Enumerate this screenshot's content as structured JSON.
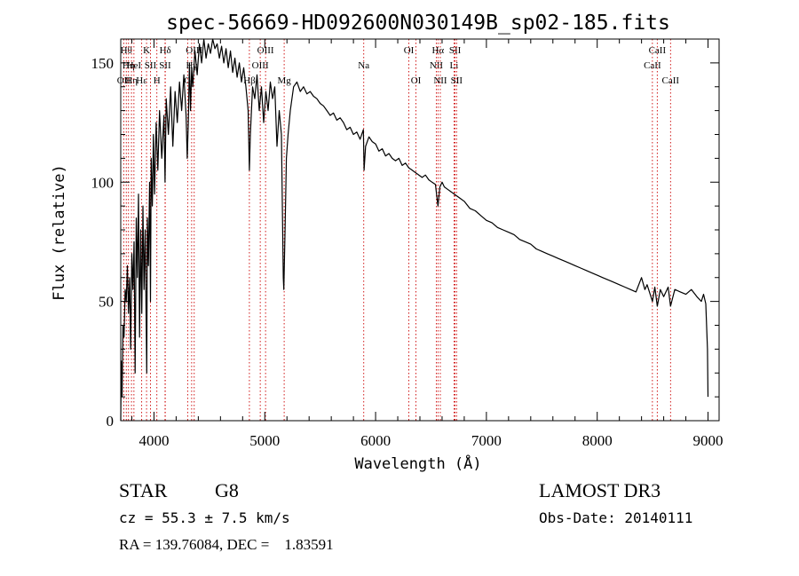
{
  "chart_data": {
    "type": "line",
    "title": "spec-56669-HD092600N030149B_sp02-185.fits",
    "xlabel": "Wavelength (Å)",
    "ylabel": "Flux (relative)",
    "xlim": [
      3700,
      9100
    ],
    "ylim": [
      0,
      160
    ],
    "xticks": [
      4000,
      5000,
      6000,
      7000,
      8000,
      9000
    ],
    "yticks": [
      0,
      50,
      100,
      150
    ],
    "x_minor_step": 200,
    "y_minor_step": 10,
    "series": [
      {
        "name": "flux",
        "x": [
          3700,
          3705,
          3712,
          3720,
          3730,
          3740,
          3750,
          3760,
          3770,
          3780,
          3790,
          3800,
          3810,
          3820,
          3830,
          3840,
          3850,
          3860,
          3870,
          3880,
          3890,
          3900,
          3910,
          3920,
          3930,
          3935,
          3940,
          3950,
          3960,
          3968,
          3975,
          3985,
          3995,
          4005,
          4020,
          4035,
          4050,
          4070,
          4090,
          4100,
          4110,
          4130,
          4150,
          4170,
          4190,
          4210,
          4230,
          4250,
          4270,
          4290,
          4300,
          4310,
          4320,
          4330,
          4340,
          4350,
          4370,
          4390,
          4410,
          4430,
          4450,
          4470,
          4490,
          4510,
          4530,
          4550,
          4570,
          4590,
          4610,
          4630,
          4650,
          4670,
          4690,
          4710,
          4730,
          4750,
          4770,
          4790,
          4810,
          4830,
          4850,
          4861,
          4870,
          4890,
          4910,
          4930,
          4950,
          4970,
          4990,
          5010,
          5030,
          5050,
          5070,
          5090,
          5110,
          5130,
          5150,
          5167,
          5172,
          5183,
          5195,
          5210,
          5230,
          5260,
          5290,
          5320,
          5350,
          5380,
          5410,
          5440,
          5470,
          5500,
          5530,
          5560,
          5590,
          5620,
          5650,
          5680,
          5710,
          5740,
          5770,
          5800,
          5830,
          5860,
          5890,
          5896,
          5910,
          5940,
          5970,
          6000,
          6030,
          6060,
          6090,
          6120,
          6150,
          6180,
          6210,
          6240,
          6270,
          6300,
          6330,
          6360,
          6390,
          6420,
          6450,
          6480,
          6510,
          6540,
          6563,
          6580,
          6600,
          6620,
          6650,
          6680,
          6710,
          6740,
          6770,
          6800,
          6850,
          6900,
          6950,
          7000,
          7050,
          7100,
          7150,
          7200,
          7250,
          7300,
          7350,
          7400,
          7450,
          7500,
          7550,
          7600,
          7650,
          7700,
          7750,
          7800,
          7850,
          7900,
          7950,
          8000,
          8050,
          8100,
          8150,
          8200,
          8250,
          8300,
          8350,
          8400,
          8430,
          8450,
          8498,
          8520,
          8542,
          8570,
          8600,
          8640,
          8662,
          8700,
          8750,
          8800,
          8850,
          8900,
          8940,
          8960,
          8980,
          8995,
          9000
        ],
        "values": [
          0,
          25,
          10,
          40,
          35,
          55,
          50,
          65,
          45,
          60,
          30,
          70,
          55,
          75,
          20,
          85,
          60,
          95,
          35,
          80,
          45,
          90,
          55,
          80,
          40,
          20,
          85,
          65,
          100,
          50,
          110,
          90,
          120,
          95,
          125,
          105,
          130,
          110,
          128,
          100,
          135,
          120,
          140,
          115,
          138,
          125,
          142,
          130,
          145,
          128,
          110,
          125,
          150,
          130,
          148,
          140,
          155,
          145,
          158,
          150,
          160,
          152,
          158,
          154,
          160,
          156,
          158,
          152,
          157,
          150,
          156,
          148,
          155,
          146,
          152,
          144,
          150,
          142,
          148,
          140,
          130,
          105,
          120,
          140,
          135,
          145,
          130,
          140,
          125,
          138,
          130,
          142,
          135,
          140,
          115,
          130,
          120,
          60,
          55,
          80,
          110,
          120,
          130,
          140,
          142,
          138,
          140,
          137,
          138,
          136,
          135,
          133,
          132,
          130,
          128,
          129,
          126,
          127,
          125,
          122,
          123,
          120,
          121,
          118,
          122,
          105,
          115,
          119,
          117,
          116,
          113,
          114,
          111,
          112,
          110,
          109,
          110,
          107,
          108,
          106,
          105,
          104,
          103,
          102,
          103,
          101,
          100,
          99,
          90,
          98,
          100,
          98,
          97,
          96,
          95,
          94,
          93,
          92,
          89,
          88,
          86,
          84,
          83,
          81,
          80,
          79,
          78,
          76,
          75,
          74,
          72,
          71,
          70,
          69,
          68,
          67,
          66,
          65,
          64,
          63,
          62,
          61,
          60,
          59,
          58,
          57,
          56,
          55,
          54,
          60,
          55,
          57,
          50,
          56,
          48,
          55,
          52,
          56,
          48,
          55,
          54,
          53,
          55,
          52,
          50,
          53,
          49,
          30,
          10
        ]
      }
    ],
    "lines": [
      {
        "x": 3727,
        "label": "OII",
        "row": 2
      },
      {
        "x": 3750,
        "label": "Hθ",
        "row": 0
      },
      {
        "x": 3770,
        "label": "Hη",
        "row": 1
      },
      {
        "x": 3797,
        "label": "Hη",
        "row": 2
      },
      {
        "x": 3819,
        "label": "HeI",
        "row": 1
      },
      {
        "x": 3889,
        "label": "Hε",
        "row": 2
      },
      {
        "x": 3933,
        "label": "K",
        "row": 0
      },
      {
        "x": 3968,
        "label": "SII",
        "row": 1
      },
      {
        "x": 4026,
        "label": "H",
        "row": 2
      },
      {
        "x": 4102,
        "label": "Hδ",
        "row": 0
      },
      {
        "x": 4100,
        "label": "SII",
        "row": 1
      },
      {
        "x": 4304,
        "label": "G",
        "row": 2
      },
      {
        "x": 4340,
        "label": "Hγ",
        "row": 1
      },
      {
        "x": 4363,
        "label": "OIII",
        "row": 0
      },
      {
        "x": 4861,
        "label": "Hβ",
        "row": 2
      },
      {
        "x": 4959,
        "label": "OIII",
        "row": 1
      },
      {
        "x": 5007,
        "label": "OIII",
        "row": 0
      },
      {
        "x": 5175,
        "label": "Mg",
        "row": 2
      },
      {
        "x": 5893,
        "label": "Na",
        "row": 1
      },
      {
        "x": 6300,
        "label": "OI",
        "row": 0
      },
      {
        "x": 6364,
        "label": "OI",
        "row": 2
      },
      {
        "x": 6548,
        "label": "NII",
        "row": 1
      },
      {
        "x": 6563,
        "label": "Hα",
        "row": 0
      },
      {
        "x": 6584,
        "label": "NII",
        "row": 2
      },
      {
        "x": 6708,
        "label": "Li",
        "row": 1
      },
      {
        "x": 6717,
        "label": "SII",
        "row": 0
      },
      {
        "x": 6731,
        "label": "SII",
        "row": 2
      },
      {
        "x": 8498,
        "label": "CaII",
        "row": 1
      },
      {
        "x": 8542,
        "label": "CaII",
        "row": 0
      },
      {
        "x": 8662,
        "label": "CaII",
        "row": 2
      }
    ]
  },
  "info": {
    "object_class": "STAR",
    "subclass": "G8",
    "survey": "LAMOST DR3",
    "redshift": "cz = 55.3 ± 7.5 km/s",
    "obs_date": "Obs-Date: 20140111",
    "coords": "RA = 139.76084, DEC =    1.83591"
  },
  "colors": {
    "line_marker": "#cc0000",
    "spectrum": "#000000",
    "axes": "#000000"
  }
}
